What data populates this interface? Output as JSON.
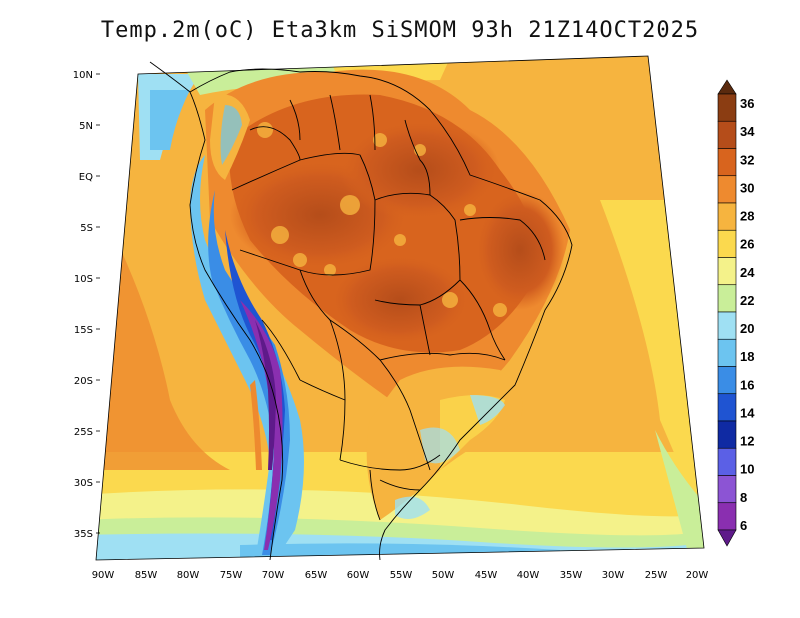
{
  "title": "Temp.2m(oC) Eta3km SiSMOM 93h 21Z14OCT2025",
  "lat_labels": [
    "10N",
    "5N",
    "EQ",
    "5S",
    "10S",
    "15S",
    "20S",
    "25S",
    "30S",
    "35S"
  ],
  "lon_labels": [
    "90W",
    "85W",
    "80W",
    "75W",
    "70W",
    "65W",
    "60W",
    "55W",
    "50W",
    "45W",
    "40W",
    "35W",
    "30W",
    "25W",
    "20W"
  ],
  "colorbar": {
    "labels": [
      "36",
      "34",
      "32",
      "30",
      "28",
      "26",
      "24",
      "22",
      "20",
      "18",
      "16",
      "14",
      "12",
      "10",
      "8",
      "6"
    ],
    "colors": [
      "#5a2a0e",
      "#8b3d12",
      "#b54d1a",
      "#d8641e",
      "#ee8a2f",
      "#f6b43f",
      "#fbd94e",
      "#f4f28a",
      "#c9ee99",
      "#9fe0f3",
      "#6cc4f0",
      "#3a8de6",
      "#1f54d2",
      "#0f2aa3",
      "#5b60e6",
      "#8c54d4",
      "#8a2fb0",
      "#5e1a8a"
    ]
  }
}
